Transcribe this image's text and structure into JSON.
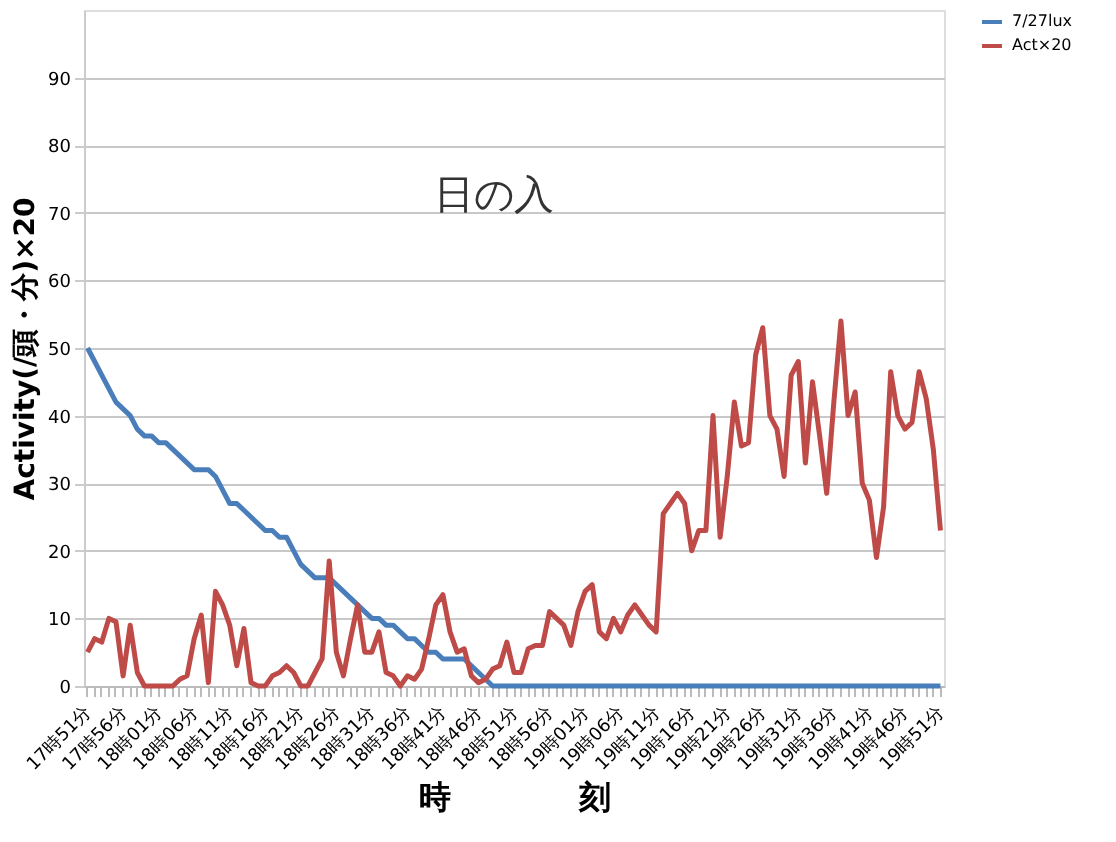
{
  "chart_data": {
    "type": "line",
    "xlabel": "時　　　　刻",
    "ylabel": "Activity(/頭・分)×20",
    "categories": [
      "17時51分",
      null,
      null,
      null,
      null,
      "17時56分",
      null,
      null,
      null,
      null,
      "18時01分",
      null,
      null,
      null,
      null,
      "18時06分",
      null,
      null,
      null,
      null,
      "18時11分",
      null,
      null,
      null,
      null,
      "18時16分",
      null,
      null,
      null,
      null,
      "18時21分",
      null,
      null,
      null,
      null,
      "18時26分",
      null,
      null,
      null,
      null,
      "18時31分",
      null,
      null,
      null,
      null,
      "18時36分",
      null,
      null,
      null,
      null,
      "18時41分",
      null,
      null,
      null,
      null,
      "18時46分",
      null,
      null,
      null,
      null,
      "18時51分",
      null,
      null,
      null,
      null,
      "18時56分",
      null,
      null,
      null,
      null,
      "19時01分",
      null,
      null,
      null,
      null,
      "19時06分",
      null,
      null,
      null,
      null,
      "19時11分",
      null,
      null,
      null,
      null,
      "19時16分",
      null,
      null,
      null,
      null,
      "19時21分",
      null,
      null,
      null,
      null,
      "19時26分",
      null,
      null,
      null,
      null,
      "19時31分",
      null,
      null,
      null,
      null,
      "19時36分",
      null,
      null,
      null,
      null,
      "19時41分",
      null,
      null,
      null,
      null,
      "19時46分",
      null,
      null,
      null,
      null,
      "19時51分"
    ],
    "series": [
      {
        "name": "7/27lux",
        "color": "#4a7ebb",
        "values": [
          50,
          48,
          46,
          44,
          42,
          41,
          40,
          38,
          37,
          37,
          36,
          36,
          35,
          34,
          33,
          32,
          32,
          32,
          31,
          29,
          27,
          27,
          26,
          25,
          24,
          23,
          23,
          22,
          22,
          20,
          18,
          17,
          16,
          16,
          16,
          15,
          14,
          13,
          12,
          11,
          10,
          10,
          9,
          9,
          8,
          7,
          7,
          6,
          5,
          5,
          4,
          4,
          4,
          4,
          3,
          2,
          1,
          0,
          0,
          0,
          0,
          0,
          0,
          0,
          0,
          0,
          0,
          0,
          0,
          0,
          0,
          0,
          0,
          0,
          0,
          0,
          0,
          0,
          0,
          0,
          0,
          0,
          0,
          0,
          0,
          0,
          0,
          0,
          0,
          0,
          0,
          0,
          0,
          0,
          0,
          0,
          0,
          0,
          0,
          0,
          0,
          0,
          0,
          0,
          0,
          0,
          0,
          0,
          0,
          0,
          0,
          0,
          0,
          0,
          0,
          0,
          0,
          0,
          0,
          0,
          0
        ]
      },
      {
        "name": "Act×20",
        "color": "#be4b48",
        "values": [
          5,
          7,
          6.5,
          10,
          9.5,
          1.5,
          9,
          2,
          0,
          0,
          0,
          0,
          0,
          1,
          1.5,
          7,
          10.5,
          0.5,
          14,
          12,
          9,
          3,
          8.5,
          0.5,
          0,
          0,
          1.5,
          2,
          3,
          2,
          0,
          0,
          2,
          4,
          18.5,
          5,
          1.5,
          7,
          12,
          5,
          5,
          8,
          2,
          1.5,
          0,
          1.5,
          1,
          2.5,
          7,
          12,
          13.5,
          8,
          5,
          5.5,
          1.5,
          0.5,
          1,
          2.5,
          3,
          6.5,
          2,
          2,
          5.5,
          6,
          6,
          11,
          10,
          9,
          6,
          11,
          14,
          15,
          8,
          7,
          10,
          8,
          10.5,
          12,
          10.5,
          9,
          8,
          25.5,
          27,
          28.5,
          27,
          20,
          23,
          23,
          40,
          22,
          31,
          42,
          35.5,
          36,
          49,
          53,
          40,
          38,
          31,
          46,
          48,
          33,
          45,
          37,
          28.5,
          42,
          54,
          40,
          43.5,
          30,
          27.5,
          19,
          26.5,
          46.5,
          40,
          38,
          39,
          46.5,
          42.5,
          35,
          23
        ]
      }
    ],
    "ylim": [
      0,
      100
    ],
    "yticks": [
      0,
      10,
      20,
      30,
      40,
      50,
      60,
      70,
      80,
      90
    ],
    "grid": "y",
    "legend": "right",
    "marker": "none",
    "line_style": "solid",
    "annotations": [
      "日の入"
    ]
  }
}
